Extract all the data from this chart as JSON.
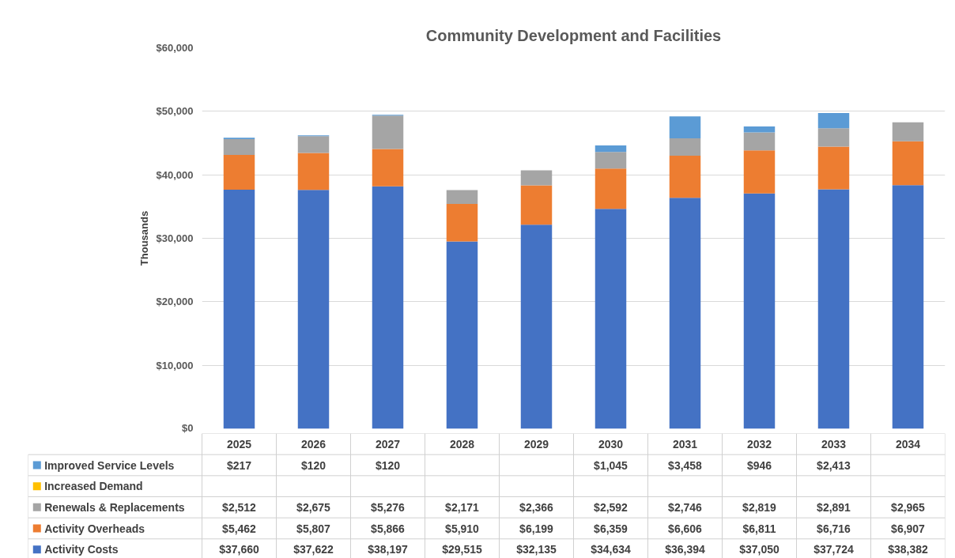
{
  "chart_data": {
    "type": "bar",
    "title": "Community Development and Facilities",
    "ylabel": "Thousands",
    "stacked": true,
    "grid": "y",
    "legend": "bottom",
    "categories": [
      "2025",
      "2026",
      "2027",
      "2028",
      "2029",
      "2030",
      "2031",
      "2032",
      "2033",
      "2034"
    ],
    "ylim": [
      0,
      60000
    ],
    "yticks": [
      {
        "value": 0,
        "label": "$0"
      },
      {
        "value": 10000,
        "label": "$10,000"
      },
      {
        "value": 20000,
        "label": "$20,000"
      },
      {
        "value": 30000,
        "label": "$30,000"
      },
      {
        "value": 40000,
        "label": "$40,000"
      },
      {
        "value": 50000,
        "label": "$50,000"
      },
      {
        "value": 60000,
        "label": "$60,000"
      }
    ],
    "series": [
      {
        "name": "Activity Costs",
        "color": "#4472c4",
        "values": [
          37660,
          37622,
          38197,
          29515,
          32135,
          34634,
          36394,
          37050,
          37724,
          38382
        ],
        "value_labels": [
          "$37,660",
          "$37,622",
          "$38,197",
          "$29,515",
          "$32,135",
          "$34,634",
          "$36,394",
          "$37,050",
          "$37,724",
          "$38,382"
        ]
      },
      {
        "name": "Activity Overheads",
        "color": "#ed7d31",
        "values": [
          5462,
          5807,
          5866,
          5910,
          6199,
          6359,
          6606,
          6811,
          6716,
          6907
        ],
        "value_labels": [
          "$5,462",
          "$5,807",
          "$5,866",
          "$5,910",
          "$6,199",
          "$6,359",
          "$6,606",
          "$6,811",
          "$6,716",
          "$6,907"
        ]
      },
      {
        "name": "Renewals & Replacements",
        "color": "#a5a5a5",
        "values": [
          2512,
          2675,
          5276,
          2171,
          2366,
          2592,
          2746,
          2819,
          2891,
          2965
        ],
        "value_labels": [
          "$2,512",
          "$2,675",
          "$5,276",
          "$2,171",
          "$2,366",
          "$2,592",
          "$2,746",
          "$2,819",
          "$2,891",
          "$2,965"
        ]
      },
      {
        "name": "Increased Demand",
        "color": "#ffc000",
        "values": [
          null,
          null,
          null,
          null,
          null,
          null,
          null,
          null,
          null,
          null
        ],
        "value_labels": [
          null,
          null,
          null,
          null,
          null,
          null,
          null,
          null,
          null,
          null
        ]
      },
      {
        "name": "Improved Service Levels",
        "color": "#5b9bd5",
        "values": [
          217,
          120,
          120,
          null,
          null,
          1045,
          3458,
          946,
          2413,
          null
        ],
        "value_labels": [
          "$217",
          "$120",
          "$120",
          null,
          null,
          "$1,045",
          "$3,458",
          "$946",
          "$2,413",
          null
        ]
      }
    ]
  }
}
